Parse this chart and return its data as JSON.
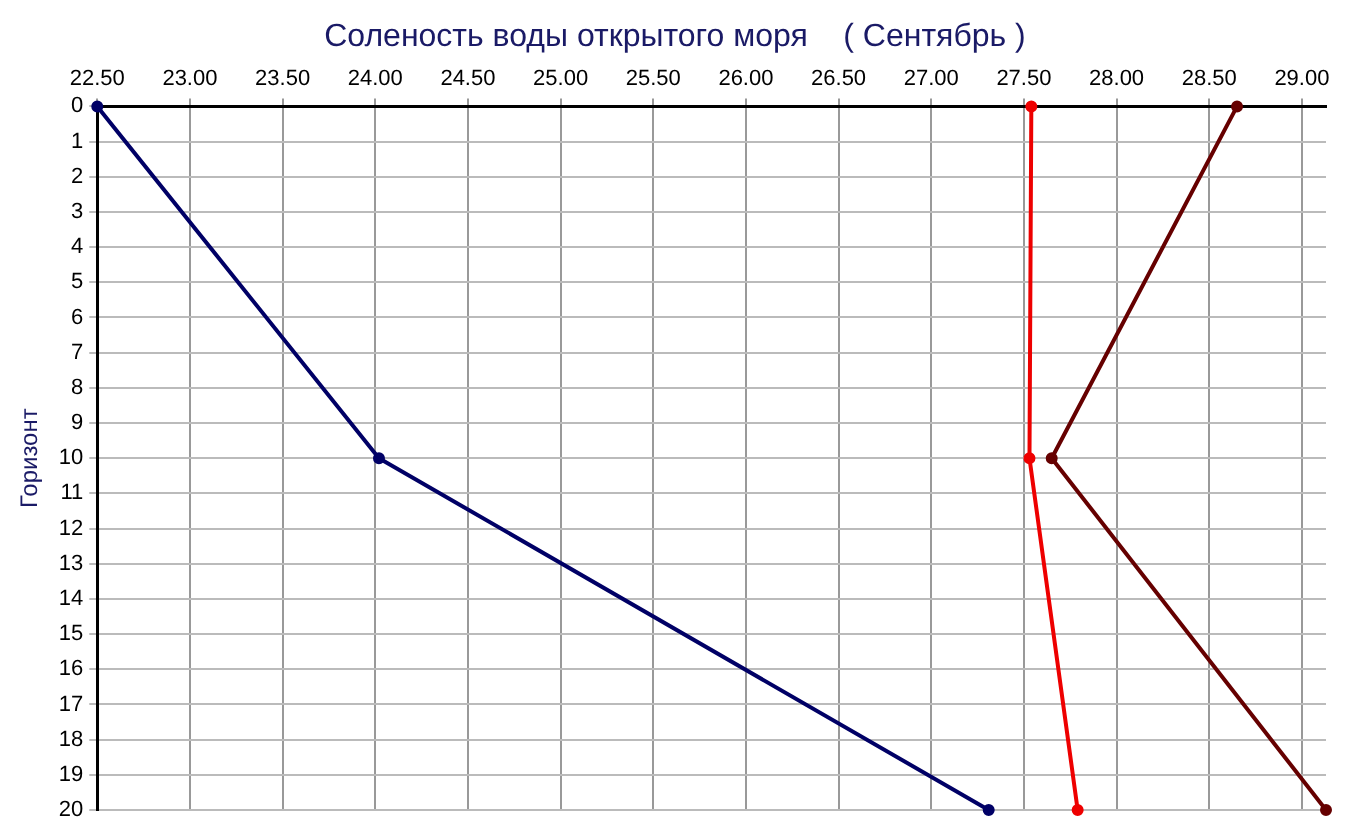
{
  "chart_data": {
    "type": "line",
    "title": "Соленость воды открытого моря    ( Сентябрь )",
    "ylabel": "Горизонт",
    "xlim": [
      22.5,
      29.13
    ],
    "xticks": [
      {
        "value": 22.5,
        "label": "22.50"
      },
      {
        "value": 23,
        "label": "23.00"
      },
      {
        "value": 23.5,
        "label": "23.50"
      },
      {
        "value": 24,
        "label": "24.00"
      },
      {
        "value": 24.5,
        "label": "24.50"
      },
      {
        "value": 25,
        "label": "25.00"
      },
      {
        "value": 25.5,
        "label": "25.50"
      },
      {
        "value": 26,
        "label": "26.00"
      },
      {
        "value": 26.5,
        "label": "26.50"
      },
      {
        "value": 27,
        "label": "27.00"
      },
      {
        "value": 27.5,
        "label": "27.50"
      },
      {
        "value": 28,
        "label": "28.00"
      },
      {
        "value": 28.5,
        "label": "28.50"
      },
      {
        "value": 29,
        "label": "29.00"
      }
    ],
    "ylim": [
      20,
      0
    ],
    "yticks": [
      0,
      1,
      2,
      3,
      4,
      5,
      6,
      7,
      8,
      9,
      10,
      11,
      12,
      13,
      14,
      15,
      16,
      17,
      18,
      19,
      20
    ],
    "grid": true,
    "legend": false,
    "marker": "circle",
    "line_style": "solid",
    "series": [
      {
        "color": "#000066",
        "x": [
          22.5,
          24.02,
          27.31
        ],
        "values": [
          0,
          10,
          20
        ]
      },
      {
        "color": "#ee0000",
        "x": [
          27.54,
          27.53,
          27.79
        ],
        "values": [
          0,
          10,
          20
        ]
      },
      {
        "color": "#660000",
        "x": [
          28.65,
          27.65,
          29.13
        ],
        "values": [
          0,
          10,
          20
        ]
      }
    ]
  }
}
